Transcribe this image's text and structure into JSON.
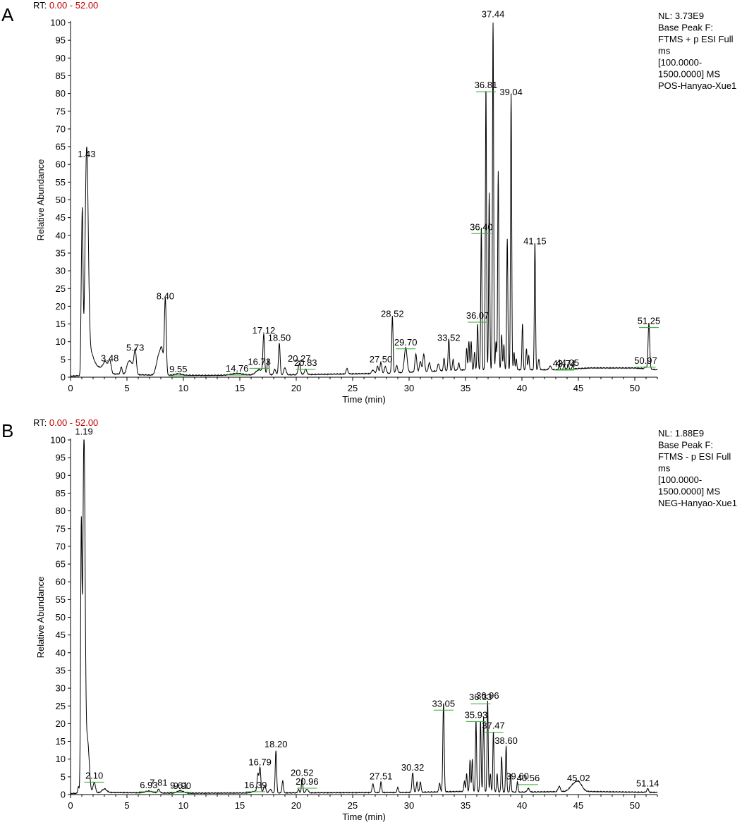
{
  "colors": {
    "trace": "#000000",
    "rt_range": "#c00000",
    "label_line": "#33aa33"
  },
  "chart_data": [
    {
      "type": "line",
      "panel": "A",
      "rt_label": "RT:",
      "rt_range": "0.00 - 52.00",
      "info_lines": [
        "NL: 3.73E9",
        "Base Peak F:",
        "FTMS + p ESI Full",
        "ms",
        "[100.0000-",
        "1500.0000]  MS",
        "POS-Hanyao-Xue1"
      ],
      "xlabel": "Time (min)",
      "ylabel": "Relative Abundance",
      "xlim": [
        0,
        52
      ],
      "ylim": [
        0,
        100
      ],
      "xticks": [
        0,
        5,
        10,
        15,
        20,
        25,
        30,
        35,
        40,
        45,
        50
      ],
      "yticks": [
        0,
        5,
        10,
        15,
        20,
        25,
        30,
        35,
        40,
        45,
        50,
        55,
        60,
        65,
        70,
        75,
        80,
        85,
        90,
        95,
        100
      ],
      "baseline": [
        [
          0,
          0.2
        ],
        [
          4,
          0.8
        ],
        [
          7,
          0.5
        ],
        [
          12,
          0.4
        ],
        [
          20,
          0.6
        ],
        [
          28,
          1
        ],
        [
          35,
          2
        ],
        [
          40,
          2
        ],
        [
          43,
          2
        ],
        [
          46,
          2.5
        ],
        [
          50,
          2.5
        ],
        [
          52,
          2
        ]
      ],
      "peaks": [
        [
          0.95,
          17,
          0.05
        ],
        [
          1.05,
          43,
          0.06
        ],
        [
          1.43,
          61,
          0.14
        ],
        [
          1.75,
          6,
          0.3
        ],
        [
          2.5,
          2,
          0.4
        ],
        [
          3.1,
          3,
          0.2
        ],
        [
          3.48,
          3.5,
          0.12
        ],
        [
          4.5,
          2,
          0.08
        ],
        [
          5.1,
          2.5,
          0.15
        ],
        [
          5.4,
          3,
          0.2
        ],
        [
          5.73,
          6.5,
          0.1
        ],
        [
          7.8,
          5,
          0.2
        ],
        [
          8.1,
          6,
          0.15
        ],
        [
          8.4,
          21,
          0.08
        ],
        [
          9.55,
          0.4,
          0.3
        ],
        [
          14.76,
          0.5,
          0.5
        ],
        [
          16.73,
          1.5,
          0.3
        ],
        [
          17.12,
          11,
          0.07
        ],
        [
          17.5,
          4,
          0.08
        ],
        [
          18.1,
          1.5,
          0.1
        ],
        [
          18.5,
          9,
          0.07
        ],
        [
          19.0,
          2,
          0.1
        ],
        [
          20.27,
          3,
          0.1
        ],
        [
          20.83,
          1.5,
          0.1
        ],
        [
          24.5,
          1.5,
          0.08
        ],
        [
          26.8,
          1,
          0.1
        ],
        [
          27.2,
          2,
          0.08
        ],
        [
          27.5,
          3,
          0.08
        ],
        [
          27.9,
          2,
          0.08
        ],
        [
          28.52,
          16,
          0.06
        ],
        [
          28.9,
          2,
          0.08
        ],
        [
          29.7,
          7,
          0.12
        ],
        [
          30.6,
          5,
          0.08
        ],
        [
          31.0,
          3,
          0.08
        ],
        [
          31.3,
          5,
          0.08
        ],
        [
          31.8,
          2.5,
          0.08
        ],
        [
          32.6,
          2,
          0.08
        ],
        [
          33.1,
          3.5,
          0.06
        ],
        [
          33.52,
          9,
          0.06
        ],
        [
          33.9,
          3,
          0.06
        ],
        [
          34.4,
          2,
          0.06
        ],
        [
          35.1,
          6,
          0.05
        ],
        [
          35.3,
          8,
          0.05
        ],
        [
          35.5,
          8,
          0.05
        ],
        [
          35.8,
          5,
          0.05
        ],
        [
          36.07,
          13,
          0.05
        ],
        [
          36.4,
          40,
          0.05
        ],
        [
          36.81,
          80,
          0.05
        ],
        [
          37.1,
          50,
          0.05
        ],
        [
          37.44,
          100,
          0.05
        ],
        [
          37.7,
          8,
          0.05
        ],
        [
          37.9,
          56,
          0.05
        ],
        [
          38.2,
          10,
          0.05
        ],
        [
          38.4,
          7,
          0.05
        ],
        [
          38.7,
          37,
          0.05
        ],
        [
          39.04,
          78,
          0.05
        ],
        [
          39.3,
          5,
          0.05
        ],
        [
          39.5,
          3,
          0.05
        ],
        [
          40.05,
          13,
          0.05
        ],
        [
          40.4,
          6,
          0.05
        ],
        [
          40.6,
          4,
          0.05
        ],
        [
          41.15,
          36,
          0.05
        ],
        [
          41.5,
          3,
          0.06
        ],
        [
          42.5,
          1,
          0.1
        ],
        [
          43.3,
          1.5,
          0.05
        ],
        [
          43.74,
          1.5,
          0.05
        ],
        [
          44.1,
          1.5,
          0.05
        ],
        [
          44.5,
          1,
          0.05
        ],
        [
          50.97,
          0.5,
          0.1
        ],
        [
          51.25,
          13,
          0.07
        ]
      ],
      "labels": [
        {
          "x": 1.43,
          "y": 61,
          "text": "1.43"
        },
        {
          "x": 3.48,
          "y": 3.5,
          "text": "3.48"
        },
        {
          "x": 5.73,
          "y": 6.5,
          "text": "5.73"
        },
        {
          "x": 8.4,
          "y": 21,
          "text": "8.40"
        },
        {
          "x": 9.55,
          "y": 0.4,
          "text": "9.55",
          "line": true
        },
        {
          "x": 14.76,
          "y": 0.6,
          "text": "14.76",
          "line": true
        },
        {
          "x": 16.73,
          "y": 2.5,
          "text": "16.73",
          "line": true
        },
        {
          "x": 17.12,
          "y": 11.3,
          "text": "17.12"
        },
        {
          "x": 18.5,
          "y": 9.2,
          "text": "18.50"
        },
        {
          "x": 20.27,
          "y": 3.4,
          "text": "20.27"
        },
        {
          "x": 20.83,
          "y": 2.2,
          "text": "20.83",
          "line": true
        },
        {
          "x": 27.5,
          "y": 3.2,
          "text": "27.50"
        },
        {
          "x": 28.52,
          "y": 16,
          "text": "28.52"
        },
        {
          "x": 29.7,
          "y": 8,
          "text": "29.70",
          "line": true
        },
        {
          "x": 33.52,
          "y": 9.2,
          "text": "33.52"
        },
        {
          "x": 36.07,
          "y": 15.5,
          "text": "36.07",
          "line": true
        },
        {
          "x": 36.4,
          "y": 40.5,
          "text": "36.40",
          "line": true
        },
        {
          "x": 36.81,
          "y": 80.5,
          "text": "36.81",
          "line": true
        },
        {
          "x": 37.44,
          "y": 100.5,
          "text": "37.44"
        },
        {
          "x": 39.04,
          "y": 78.5,
          "text": "39.04"
        },
        {
          "x": 41.15,
          "y": 36.5,
          "text": "41.15"
        },
        {
          "x": 43.74,
          "y": 2,
          "text": "43.74",
          "line": true
        },
        {
          "x": 44.05,
          "y": 2.2,
          "text": "44.05",
          "line": true
        },
        {
          "x": 50.97,
          "y": 2.8,
          "text": "50.97",
          "line": true
        },
        {
          "x": 51.25,
          "y": 14,
          "text": "51.25",
          "line": true
        }
      ]
    },
    {
      "type": "line",
      "panel": "B",
      "rt_label": "RT:",
      "rt_range": "0.00 - 52.00",
      "info_lines": [
        "NL: 1.88E9",
        "Base Peak F:",
        "FTMS - p ESI Full",
        "ms",
        "[100.0000-",
        "1500.0000]  MS",
        "NEG-Hanyao-Xue1"
      ],
      "xlabel": "Time (min)",
      "ylabel": "Relative Abundance",
      "xlim": [
        0,
        52
      ],
      "ylim": [
        0,
        100
      ],
      "xticks": [
        0,
        5,
        10,
        15,
        20,
        25,
        30,
        35,
        40,
        45,
        50
      ],
      "yticks": [
        0,
        5,
        10,
        15,
        20,
        25,
        30,
        35,
        40,
        45,
        50,
        55,
        60,
        65,
        70,
        75,
        80,
        85,
        90,
        95,
        100
      ],
      "baseline": [
        [
          0,
          0.2
        ],
        [
          3,
          0.5
        ],
        [
          10,
          0.3
        ],
        [
          20,
          0.4
        ],
        [
          30,
          0.5
        ],
        [
          35,
          0.8
        ],
        [
          40,
          0.6
        ],
        [
          45,
          0.8
        ],
        [
          52,
          0.5
        ]
      ],
      "peaks": [
        [
          0.7,
          2,
          0.05
        ],
        [
          0.95,
          72,
          0.06
        ],
        [
          1.19,
          100,
          0.1
        ],
        [
          1.5,
          15,
          0.15
        ],
        [
          2.1,
          3,
          0.1
        ],
        [
          3.0,
          1,
          0.2
        ],
        [
          6.93,
          0.5,
          0.3
        ],
        [
          7.81,
          1,
          0.1
        ],
        [
          9.61,
          0.5,
          0.2
        ],
        [
          9.9,
          0.4,
          0.2
        ],
        [
          16.39,
          0.5,
          0.3
        ],
        [
          16.6,
          5,
          0.07
        ],
        [
          16.79,
          7,
          0.07
        ],
        [
          17.2,
          2,
          0.1
        ],
        [
          17.7,
          1,
          0.1
        ],
        [
          18.2,
          12,
          0.06
        ],
        [
          18.8,
          3.5,
          0.06
        ],
        [
          20.2,
          1,
          0.06
        ],
        [
          20.52,
          4,
          0.06
        ],
        [
          20.96,
          1,
          0.1
        ],
        [
          26.8,
          2.5,
          0.07
        ],
        [
          27.51,
          3,
          0.06
        ],
        [
          29.0,
          1.5,
          0.06
        ],
        [
          30.32,
          5.5,
          0.07
        ],
        [
          30.7,
          3,
          0.06
        ],
        [
          31.0,
          3,
          0.06
        ],
        [
          32.7,
          2.5,
          0.06
        ],
        [
          33.05,
          25,
          0.06
        ],
        [
          34.9,
          3,
          0.05
        ],
        [
          35.1,
          5,
          0.05
        ],
        [
          35.4,
          9,
          0.05
        ],
        [
          35.6,
          9,
          0.05
        ],
        [
          35.93,
          20,
          0.05
        ],
        [
          36.33,
          20,
          0.05
        ],
        [
          36.6,
          21,
          0.05
        ],
        [
          36.96,
          25.5,
          0.05
        ],
        [
          37.2,
          5,
          0.05
        ],
        [
          37.47,
          17,
          0.05
        ],
        [
          37.8,
          5,
          0.05
        ],
        [
          38.2,
          10,
          0.05
        ],
        [
          38.6,
          13,
          0.05
        ],
        [
          39.0,
          5,
          0.05
        ],
        [
          39.6,
          3,
          0.05
        ],
        [
          40.56,
          1,
          0.1
        ],
        [
          43.3,
          1.5,
          0.1
        ],
        [
          44.5,
          1.5,
          0.3
        ],
        [
          45.02,
          2.5,
          0.3
        ],
        [
          51.14,
          1,
          0.08
        ]
      ],
      "labels": [
        {
          "x": 1.19,
          "y": 100.5,
          "text": "1.19"
        },
        {
          "x": 2.1,
          "y": 3.5,
          "text": "2.10",
          "line": true
        },
        {
          "x": 6.93,
          "y": 0.8,
          "text": "6.93",
          "line": true
        },
        {
          "x": 7.81,
          "y": 1.5,
          "text": "7.81"
        },
        {
          "x": 9.61,
          "y": 0.7,
          "text": "9.61",
          "line": true
        },
        {
          "x": 9.9,
          "y": 0.6,
          "text": "9.90",
          "line": true
        },
        {
          "x": 16.39,
          "y": 0.8,
          "text": "16.39",
          "line": true
        },
        {
          "x": 16.79,
          "y": 7.3,
          "text": "16.79"
        },
        {
          "x": 18.2,
          "y": 12.3,
          "text": "18.20"
        },
        {
          "x": 20.52,
          "y": 4.3,
          "text": "20.52"
        },
        {
          "x": 20.96,
          "y": 1.8,
          "text": "20.96",
          "line": true
        },
        {
          "x": 27.51,
          "y": 3.3,
          "text": "27.51"
        },
        {
          "x": 30.32,
          "y": 5.8,
          "text": "30.32"
        },
        {
          "x": 33.05,
          "y": 23.8,
          "text": "33.05",
          "line": true
        },
        {
          "x": 35.93,
          "y": 20.6,
          "text": "35.93",
          "line": true
        },
        {
          "x": 36.33,
          "y": 25.6,
          "text": "36.33",
          "line": true
        },
        {
          "x": 36.96,
          "y": 26,
          "text": "36.96"
        },
        {
          "x": 37.47,
          "y": 17.6,
          "text": "37.47",
          "line": true
        },
        {
          "x": 38.6,
          "y": 13.3,
          "text": "38.60"
        },
        {
          "x": 39.6,
          "y": 3.3,
          "text": "39.60"
        },
        {
          "x": 40.56,
          "y": 2.8,
          "text": "40.56",
          "line": true
        },
        {
          "x": 45.02,
          "y": 2.8,
          "text": "45.02"
        },
        {
          "x": 51.14,
          "y": 1.3,
          "text": "51.14"
        }
      ]
    }
  ]
}
